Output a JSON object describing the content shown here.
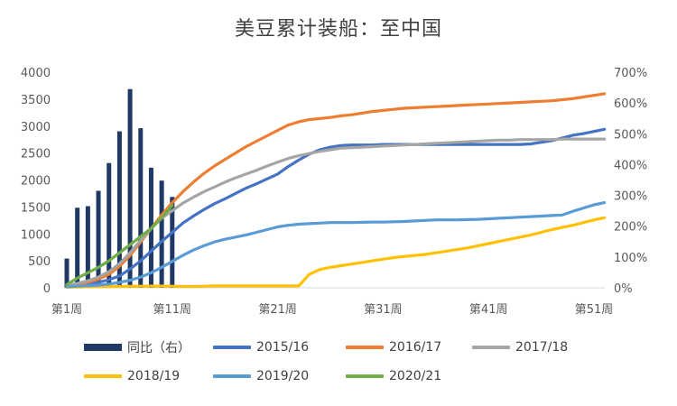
{
  "chart_data": {
    "type": "bar+line",
    "title": "美豆累计装船：至中国",
    "x_tick_labels": [
      "第1周",
      "第11周",
      "第21周",
      "第31周",
      "第41周",
      "第51周"
    ],
    "y_left": {
      "lim": [
        0,
        4000
      ],
      "ticks": [
        "0",
        "500",
        "1000",
        "1500",
        "2000",
        "2500",
        "3000",
        "3500",
        "4000"
      ]
    },
    "y_right": {
      "lim": [
        0,
        700
      ],
      "ticks": [
        "0%",
        "100%",
        "200%",
        "300%",
        "400%",
        "500%",
        "600%",
        "700%"
      ]
    },
    "grid": false,
    "legend_position": "bottom",
    "bar_series": {
      "name": "同比（右）",
      "color": "#1f3864",
      "axis": "right",
      "weeks": [
        1,
        2,
        3,
        4,
        5,
        6,
        7,
        8,
        9,
        10,
        11
      ],
      "values": [
        95,
        260,
        265,
        315,
        405,
        508,
        645,
        518,
        390,
        348,
        295
      ]
    },
    "line_series": [
      {
        "name": "2015/16",
        "color": "#4472c4",
        "axis": "left",
        "weeks": [
          1,
          2,
          3,
          4,
          5,
          6,
          7,
          8,
          9,
          10,
          11,
          12,
          13,
          14,
          15,
          16,
          17,
          18,
          19,
          20,
          21,
          22,
          23,
          24,
          25,
          26,
          27,
          28,
          29,
          30,
          31,
          32,
          33,
          34,
          35,
          36,
          37,
          38,
          39,
          40,
          41,
          42,
          43,
          44,
          45,
          46,
          47,
          48,
          49,
          50,
          51,
          52
        ],
        "values": [
          20,
          40,
          70,
          100,
          150,
          220,
          350,
          500,
          680,
          860,
          1030,
          1200,
          1330,
          1450,
          1560,
          1650,
          1750,
          1850,
          1930,
          2020,
          2110,
          2250,
          2370,
          2480,
          2560,
          2610,
          2640,
          2650,
          2650,
          2650,
          2660,
          2660,
          2660,
          2660,
          2660,
          2660,
          2660,
          2660,
          2660,
          2660,
          2660,
          2660,
          2660,
          2660,
          2670,
          2700,
          2730,
          2780,
          2830,
          2860,
          2900,
          2940
        ]
      },
      {
        "name": "2016/17",
        "color": "#ed7d31",
        "axis": "left",
        "weeks": [
          1,
          2,
          3,
          4,
          5,
          6,
          7,
          8,
          9,
          10,
          11,
          12,
          13,
          14,
          15,
          16,
          17,
          18,
          19,
          20,
          21,
          22,
          23,
          24,
          25,
          26,
          27,
          28,
          29,
          30,
          31,
          32,
          33,
          34,
          35,
          36,
          37,
          38,
          39,
          40,
          41,
          42,
          43,
          44,
          45,
          46,
          47,
          48,
          49,
          50,
          51,
          52
        ],
        "values": [
          30,
          60,
          100,
          160,
          250,
          400,
          600,
          850,
          1100,
          1350,
          1580,
          1780,
          1960,
          2120,
          2260,
          2380,
          2500,
          2620,
          2720,
          2820,
          2920,
          3020,
          3080,
          3120,
          3140,
          3160,
          3190,
          3210,
          3240,
          3270,
          3290,
          3310,
          3330,
          3340,
          3350,
          3360,
          3370,
          3380,
          3390,
          3400,
          3410,
          3420,
          3430,
          3440,
          3450,
          3460,
          3470,
          3490,
          3510,
          3540,
          3570,
          3600
        ]
      },
      {
        "name": "2017/18",
        "color": "#a5a5a5",
        "axis": "left",
        "weeks": [
          1,
          2,
          3,
          4,
          5,
          6,
          7,
          8,
          9,
          10,
          11,
          12,
          13,
          14,
          15,
          16,
          17,
          18,
          19,
          20,
          21,
          22,
          23,
          24,
          25,
          26,
          27,
          28,
          29,
          30,
          31,
          32,
          33,
          34,
          35,
          36,
          37,
          38,
          39,
          40,
          41,
          42,
          43,
          44,
          45,
          46,
          47,
          48,
          49,
          50,
          51,
          52
        ],
        "values": [
          40,
          80,
          130,
          200,
          300,
          450,
          650,
          880,
          1100,
          1290,
          1430,
          1570,
          1680,
          1780,
          1870,
          1960,
          2040,
          2110,
          2180,
          2260,
          2330,
          2400,
          2450,
          2490,
          2530,
          2560,
          2590,
          2600,
          2610,
          2620,
          2630,
          2640,
          2650,
          2660,
          2670,
          2680,
          2690,
          2700,
          2710,
          2720,
          2730,
          2740,
          2740,
          2750,
          2750,
          2750,
          2750,
          2760,
          2760,
          2760,
          2760,
          2760
        ]
      },
      {
        "name": "2018/19",
        "color": "#ffc000",
        "axis": "left",
        "weeks": [
          1,
          2,
          3,
          4,
          5,
          6,
          7,
          8,
          9,
          10,
          11,
          12,
          13,
          14,
          15,
          16,
          17,
          18,
          19,
          20,
          21,
          22,
          23,
          24,
          25,
          26,
          27,
          28,
          29,
          30,
          31,
          32,
          33,
          34,
          35,
          36,
          37,
          38,
          39,
          40,
          41,
          42,
          43,
          44,
          45,
          46,
          47,
          48,
          49,
          50,
          51,
          52
        ],
        "values": [
          10,
          15,
          20,
          22,
          24,
          26,
          28,
          30,
          32,
          33,
          30,
          25,
          25,
          30,
          35,
          35,
          35,
          35,
          35,
          35,
          35,
          35,
          35,
          250,
          340,
          380,
          410,
          440,
          470,
          500,
          530,
          560,
          580,
          600,
          620,
          650,
          680,
          710,
          740,
          780,
          820,
          860,
          900,
          940,
          980,
          1030,
          1080,
          1120,
          1160,
          1210,
          1260,
          1300
        ]
      },
      {
        "name": "2019/20",
        "color": "#5b9bd5",
        "axis": "left",
        "weeks": [
          1,
          2,
          3,
          4,
          5,
          6,
          7,
          8,
          9,
          10,
          11,
          12,
          13,
          14,
          15,
          16,
          17,
          18,
          19,
          20,
          21,
          22,
          23,
          24,
          25,
          26,
          27,
          28,
          29,
          30,
          31,
          32,
          33,
          34,
          35,
          36,
          37,
          38,
          39,
          40,
          41,
          42,
          43,
          44,
          45,
          46,
          47,
          48,
          49,
          50,
          51,
          52
        ],
        "values": [
          20,
          30,
          40,
          50,
          70,
          100,
          140,
          200,
          280,
          380,
          490,
          600,
          700,
          780,
          850,
          900,
          940,
          980,
          1030,
          1080,
          1130,
          1160,
          1180,
          1190,
          1200,
          1210,
          1210,
          1210,
          1215,
          1220,
          1220,
          1225,
          1230,
          1240,
          1250,
          1260,
          1260,
          1260,
          1265,
          1270,
          1280,
          1290,
          1300,
          1310,
          1320,
          1330,
          1340,
          1350,
          1420,
          1480,
          1540,
          1580
        ]
      },
      {
        "name": "2020/21",
        "color": "#70ad47",
        "axis": "left",
        "weeks": [
          1,
          2,
          3,
          4,
          5,
          6,
          7,
          8,
          9,
          10,
          11
        ],
        "values": [
          60,
          180,
          280,
          380,
          500,
          650,
          800,
          950,
          1100,
          1300,
          1530
        ]
      }
    ]
  },
  "legend": [
    {
      "label": "同比（右）",
      "kind": "bar",
      "color": "#1f3864"
    },
    {
      "label": "2015/16",
      "kind": "line",
      "color": "#4472c4"
    },
    {
      "label": "2016/17",
      "kind": "line",
      "color": "#ed7d31"
    },
    {
      "label": "2017/18",
      "kind": "line",
      "color": "#a5a5a5"
    },
    {
      "label": "2018/19",
      "kind": "line",
      "color": "#ffc000"
    },
    {
      "label": "2019/20",
      "kind": "line",
      "color": "#5b9bd5"
    },
    {
      "label": "2020/21",
      "kind": "line",
      "color": "#70ad47"
    }
  ]
}
